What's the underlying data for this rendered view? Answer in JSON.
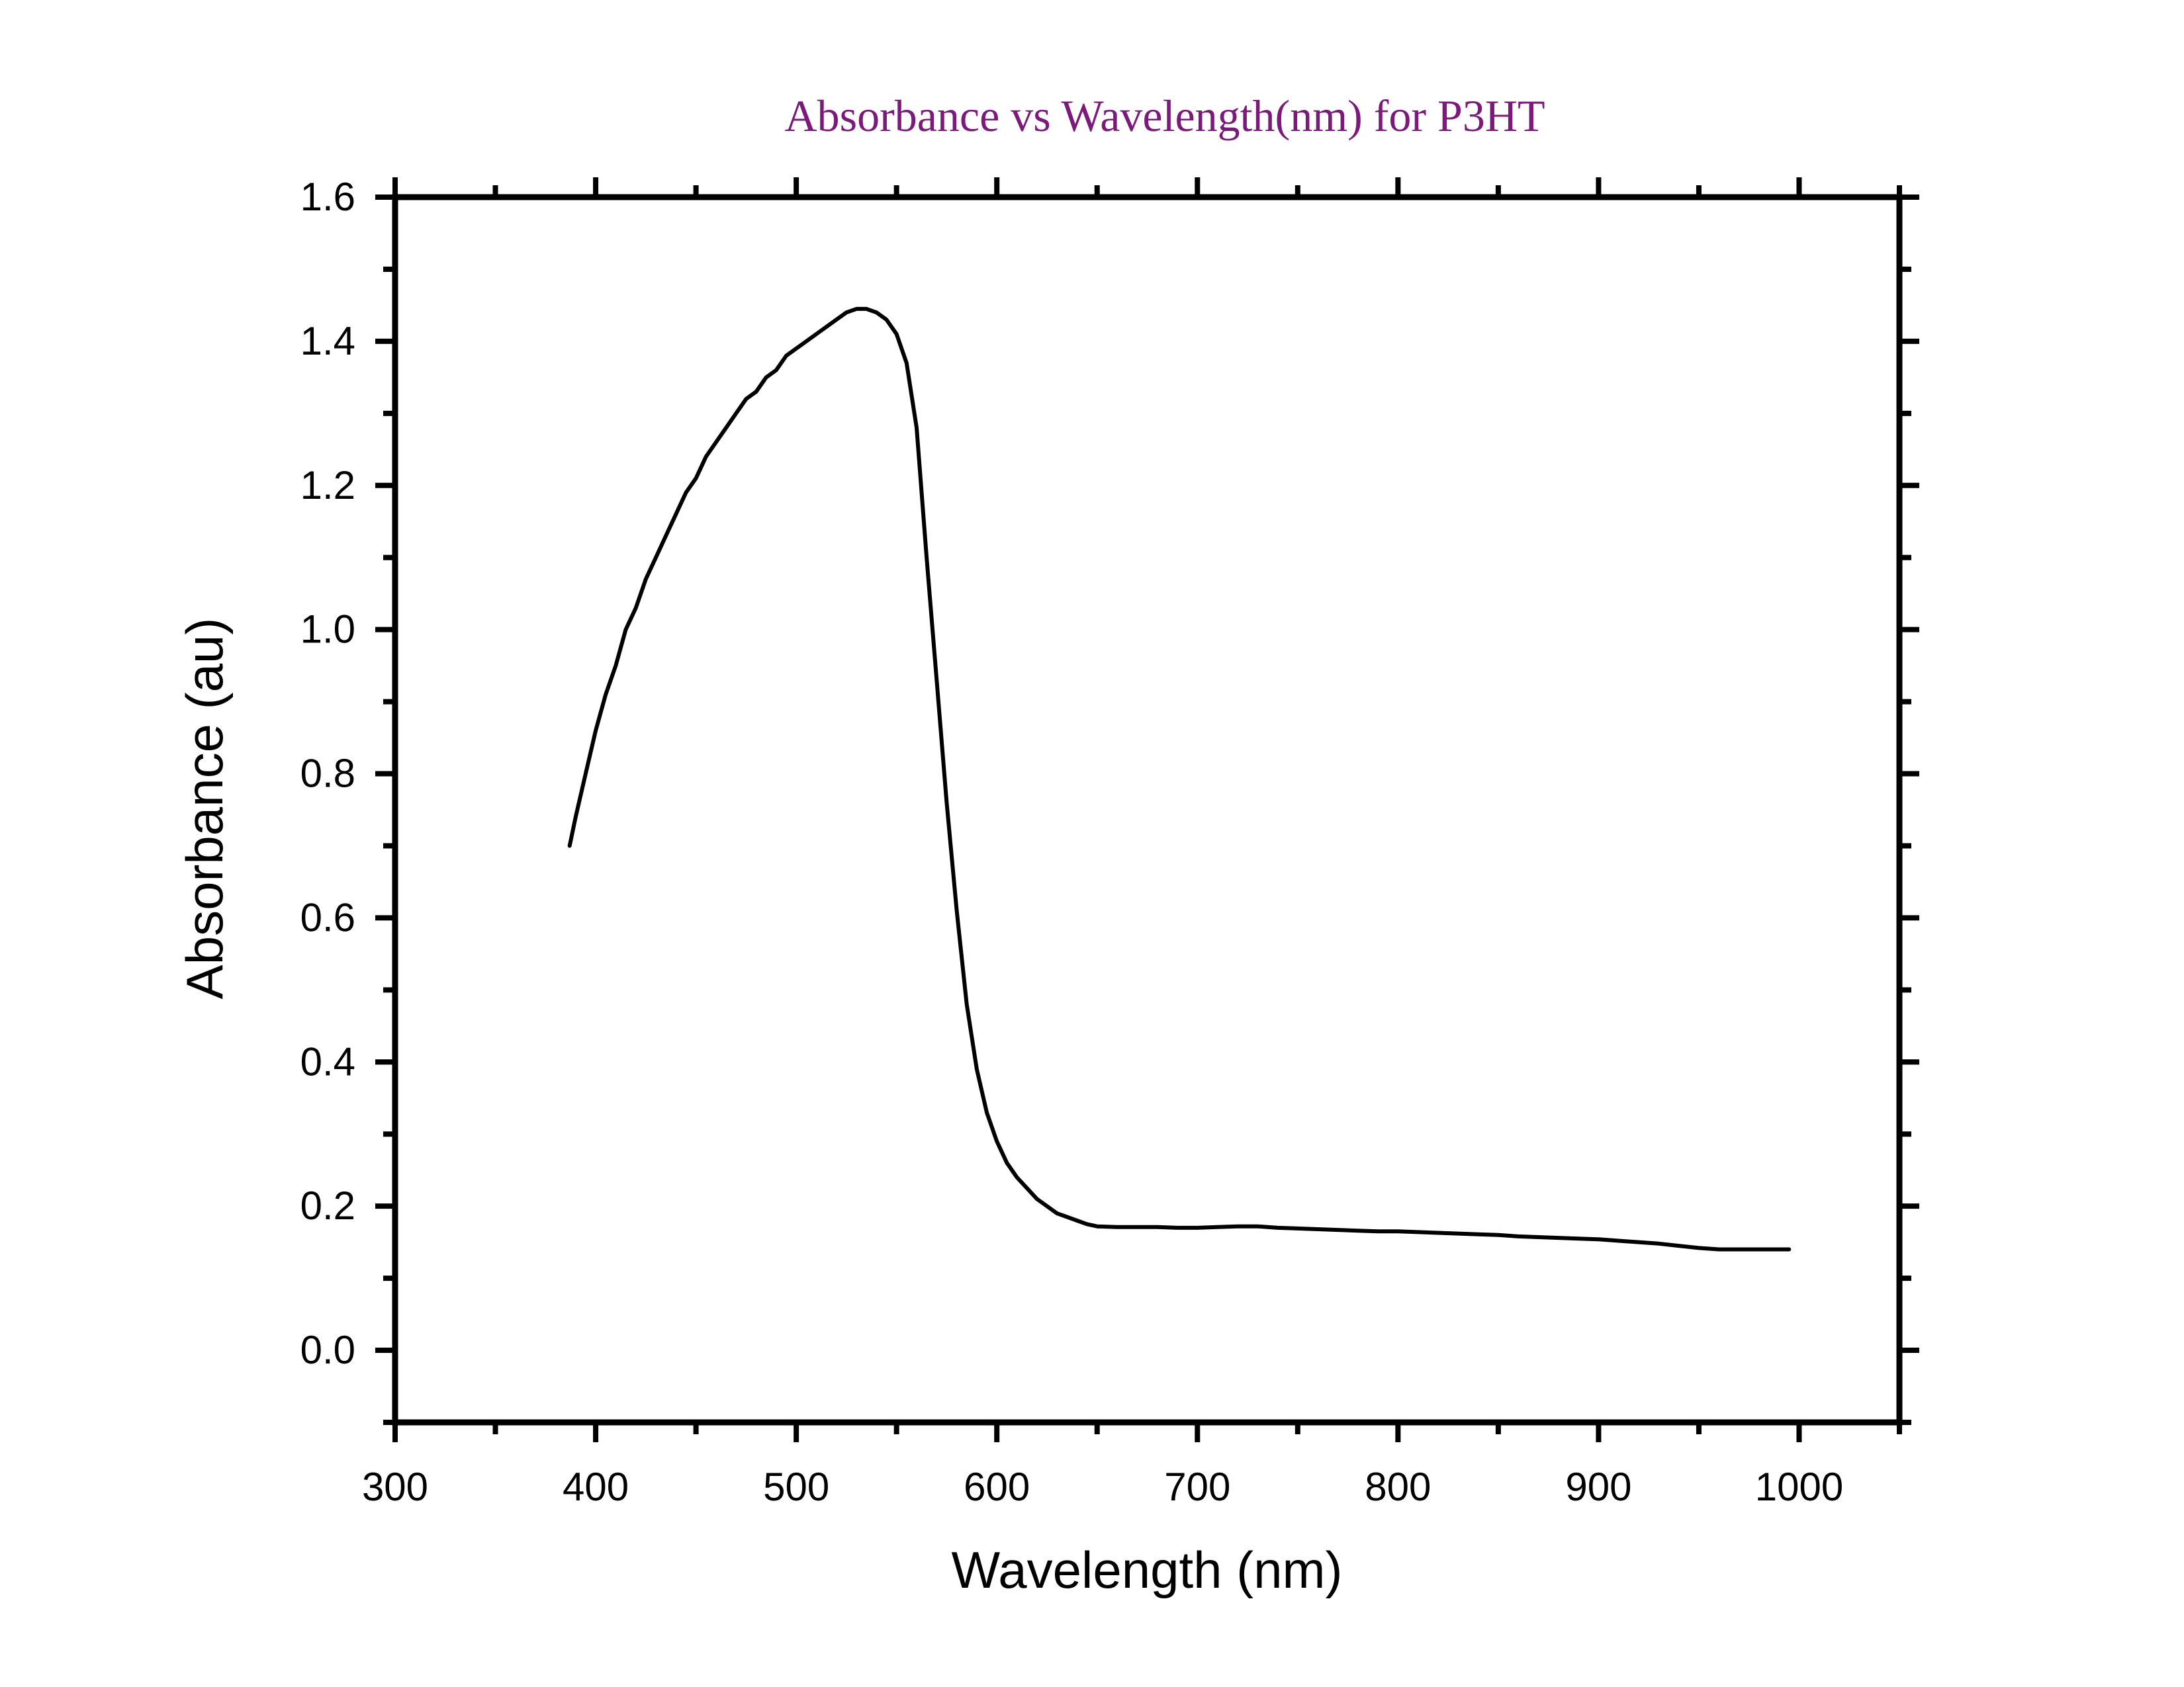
{
  "chart_data": {
    "type": "line",
    "title": "Absorbance vs Wavelength(nm) for P3HT",
    "title_color": "#7b1a7b",
    "xlabel": "Wavelength (nm)",
    "ylabel": "Absorbance (au)",
    "xlim": [
      300,
      1050
    ],
    "ylim": [
      -0.1,
      1.6
    ],
    "x_ticks": [
      300,
      400,
      500,
      600,
      700,
      800,
      900,
      1000
    ],
    "x_tick_labels": [
      "300",
      "400",
      "500",
      "600",
      "700",
      "800",
      "900",
      "1000"
    ],
    "y_ticks": [
      0.0,
      0.2,
      0.4,
      0.6,
      0.8,
      1.0,
      1.2,
      1.4,
      1.6
    ],
    "y_tick_labels": [
      "0.0",
      "0.2",
      "0.4",
      "0.6",
      "0.8",
      "1.0",
      "1.2",
      "1.4",
      "1.6"
    ],
    "grid": false,
    "legend": "none",
    "line_color": "#000000",
    "series": [
      {
        "x": [
          387,
          390,
          395,
          400,
          405,
          410,
          415,
          420,
          425,
          430,
          435,
          440,
          445,
          450,
          455,
          460,
          465,
          470,
          475,
          480,
          485,
          490,
          495,
          500,
          505,
          510,
          515,
          520,
          525,
          530,
          535,
          540,
          545,
          550,
          555,
          560,
          565,
          570,
          575,
          580,
          585,
          590,
          595,
          600,
          605,
          610,
          615,
          620,
          625,
          630,
          635,
          640,
          645,
          650,
          660,
          670,
          680,
          690,
          700,
          710,
          720,
          730,
          740,
          750,
          760,
          770,
          780,
          790,
          800,
          810,
          820,
          830,
          840,
          850,
          860,
          870,
          880,
          890,
          900,
          910,
          920,
          930,
          940,
          950,
          960,
          970,
          980,
          990,
          995
        ],
        "y": [
          0.7,
          0.74,
          0.8,
          0.86,
          0.91,
          0.95,
          1.0,
          1.03,
          1.07,
          1.1,
          1.13,
          1.16,
          1.19,
          1.21,
          1.24,
          1.26,
          1.28,
          1.3,
          1.32,
          1.33,
          1.35,
          1.36,
          1.38,
          1.39,
          1.4,
          1.41,
          1.42,
          1.43,
          1.44,
          1.445,
          1.445,
          1.44,
          1.43,
          1.41,
          1.37,
          1.28,
          1.1,
          0.93,
          0.76,
          0.61,
          0.48,
          0.39,
          0.33,
          0.29,
          0.26,
          0.24,
          0.225,
          0.21,
          0.2,
          0.19,
          0.185,
          0.18,
          0.175,
          0.172,
          0.171,
          0.171,
          0.171,
          0.17,
          0.17,
          0.171,
          0.172,
          0.172,
          0.17,
          0.169,
          0.168,
          0.167,
          0.166,
          0.165,
          0.165,
          0.164,
          0.163,
          0.162,
          0.161,
          0.16,
          0.158,
          0.157,
          0.156,
          0.155,
          0.154,
          0.152,
          0.15,
          0.148,
          0.145,
          0.142,
          0.14,
          0.14,
          0.14,
          0.14,
          0.14
        ]
      }
    ]
  }
}
